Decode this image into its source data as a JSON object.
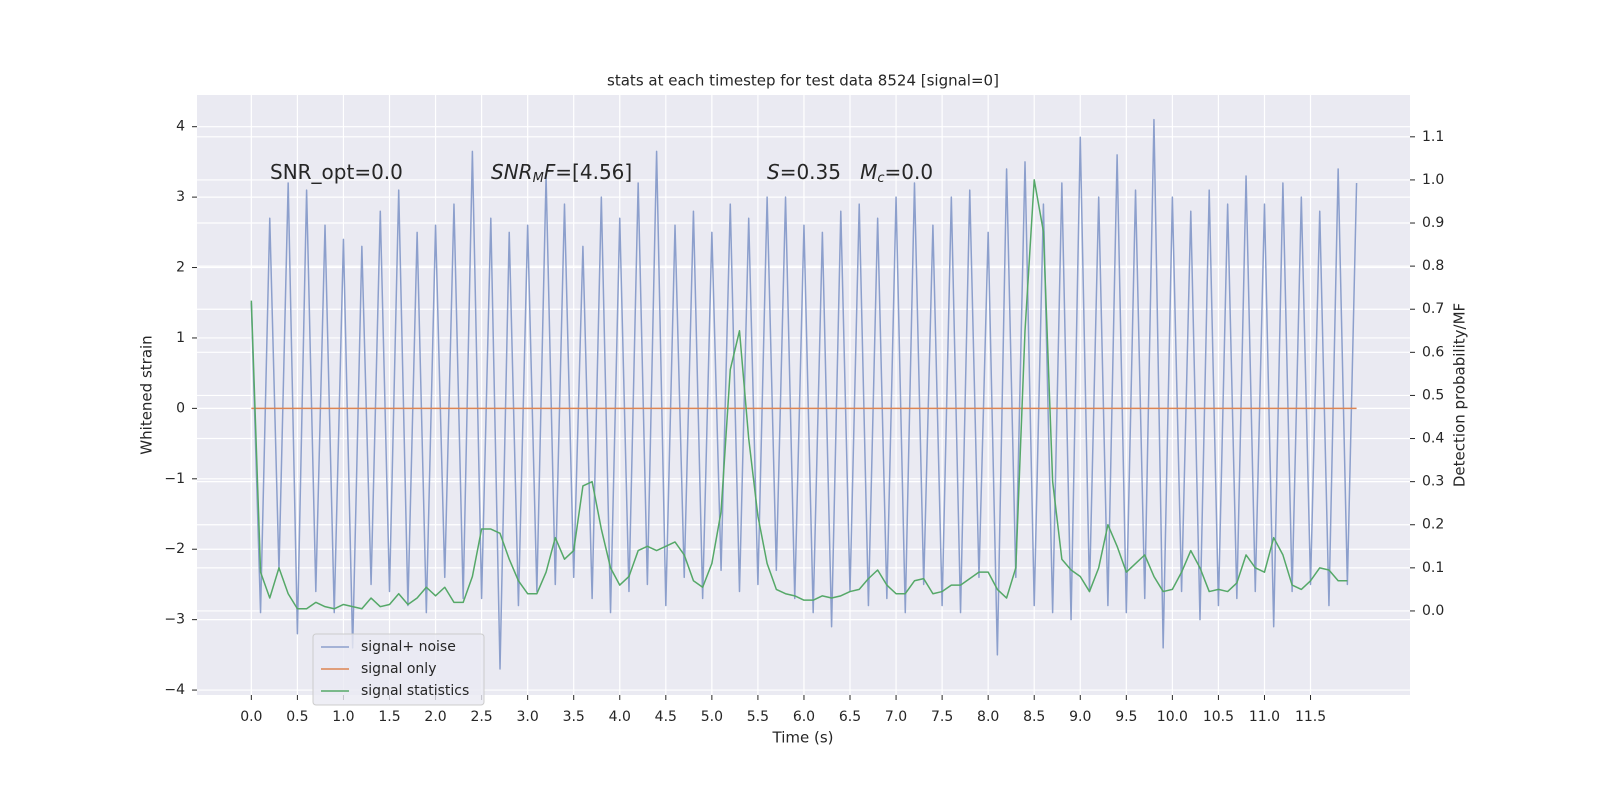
{
  "chart_data": {
    "type": "line",
    "title": "stats at each timestep for test data 8524 [signal=0]",
    "xlabel": "Time (s)",
    "ylabel": "Whitened strain",
    "y2label": "Detection probability/MF",
    "xlim": [
      -0.59,
      12.58
    ],
    "ylim": [
      -4.07,
      4.45
    ],
    "y2lim": [
      -0.195,
      1.197
    ],
    "grid": true,
    "legend": "lower left",
    "xticks": [
      {
        "value": 0,
        "label": "0.0"
      },
      {
        "value": 0.5,
        "label": "0.5"
      },
      {
        "value": 1,
        "label": "1.0"
      },
      {
        "value": 1.5,
        "label": "1.5"
      },
      {
        "value": 2,
        "label": "2.0"
      },
      {
        "value": 2.5,
        "label": "2.5"
      },
      {
        "value": 3,
        "label": "3.0"
      },
      {
        "value": 3.5,
        "label": "3.5"
      },
      {
        "value": 4,
        "label": "4.0"
      },
      {
        "value": 4.5,
        "label": "4.5"
      },
      {
        "value": 5,
        "label": "5.0"
      },
      {
        "value": 5.5,
        "label": "5.5"
      },
      {
        "value": 6,
        "label": "6.0"
      },
      {
        "value": 6.5,
        "label": "6.5"
      },
      {
        "value": 7,
        "label": "7.0"
      },
      {
        "value": 7.5,
        "label": "7.5"
      },
      {
        "value": 8,
        "label": "8.0"
      },
      {
        "value": 8.5,
        "label": "8.5"
      },
      {
        "value": 9,
        "label": "9.0"
      },
      {
        "value": 9.5,
        "label": "9.5"
      },
      {
        "value": 10,
        "label": "10.0"
      },
      {
        "value": 10.5,
        "label": "10.5"
      },
      {
        "value": 11,
        "label": "11.0"
      },
      {
        "value": 11.5,
        "label": "11.5"
      }
    ],
    "yticks": [
      {
        "value": -4,
        "label": "−4"
      },
      {
        "value": -3,
        "label": "−3"
      },
      {
        "value": -2,
        "label": "−2"
      },
      {
        "value": -1,
        "label": "−1"
      },
      0,
      1,
      2,
      3,
      4
    ],
    "y2ticks": [
      {
        "value": 0,
        "label": "0.0"
      },
      0.1,
      0.2,
      0.3,
      0.4,
      0.5,
      0.6,
      0.7,
      0.8,
      0.9,
      {
        "value": 1,
        "label": "1.0"
      },
      1.1
    ],
    "annotations": [
      [
        {
          "text": "SNR_opt=0.0",
          "style": "normal"
        }
      ],
      [
        {
          "text": "SNR",
          "style": "italic"
        },
        {
          "text": "M",
          "style": "sub"
        },
        {
          "text": "F",
          "style": "italic"
        },
        {
          "text": "=[4.56]",
          "style": "normal"
        }
      ],
      [
        {
          "text": "S",
          "style": "italic"
        },
        {
          "text": "=0.35   ",
          "style": "normal"
        },
        {
          "text": "M",
          "style": "italic"
        },
        {
          "text": "c",
          "style": "sub"
        },
        {
          "text": "=0.0",
          "style": "normal"
        }
      ]
    ],
    "series": [
      {
        "name": "signal+ noise",
        "color": "#8c9fcc",
        "x": [
          0,
          0.1,
          0.2,
          0.3,
          0.4,
          0.5,
          0.6,
          0.7,
          0.8,
          0.9,
          1,
          1.1,
          1.2,
          1.3,
          1.4,
          1.5,
          1.6,
          1.7,
          1.8,
          1.9,
          2,
          2.1,
          2.2,
          2.3,
          2.4,
          2.5,
          2.6,
          2.7,
          2.8,
          2.9,
          3,
          3.1,
          3.2,
          3.3,
          3.4,
          3.5,
          3.6,
          3.7,
          3.8,
          3.9,
          4,
          4.1,
          4.2,
          4.3,
          4.4,
          4.5,
          4.6,
          4.7,
          4.8,
          4.9,
          5,
          5.1,
          5.2,
          5.3,
          5.4,
          5.5,
          5.6,
          5.7,
          5.8,
          5.9,
          6,
          6.1,
          6.2,
          6.3,
          6.4,
          6.5,
          6.6,
          6.7,
          6.8,
          6.9,
          7,
          7.1,
          7.2,
          7.3,
          7.4,
          7.5,
          7.6,
          7.7,
          7.8,
          7.9,
          8,
          8.1,
          8.2,
          8.3,
          8.4,
          8.5,
          8.6,
          8.7,
          8.8,
          8.9,
          9,
          9.1,
          9.2,
          9.3,
          9.4,
          9.5,
          9.6,
          9.7,
          9.8,
          9.9,
          10,
          10.1,
          10.2,
          10.3,
          10.4,
          10.5,
          10.6,
          10.7,
          10.8,
          10.9,
          11,
          11.1,
          11.2,
          11.3,
          11.4,
          11.5,
          11.6,
          11.7,
          11.8,
          11.9,
          12
        ],
        "values": [
          1.5,
          -2.9,
          2.7,
          -2.3,
          3.2,
          -3.2,
          3.1,
          -2.6,
          2.6,
          -2.9,
          2.4,
          -3.4,
          2.3,
          -2.5,
          2.8,
          -2.6,
          3.1,
          -2.8,
          2.5,
          -2.9,
          2.6,
          -2.4,
          2.9,
          -2.7,
          3.65,
          -2.7,
          2.7,
          -3.7,
          2.5,
          -2.8,
          2.6,
          -2.6,
          3.3,
          -2.5,
          2.9,
          -2.4,
          2.3,
          -2.7,
          3.0,
          -2.9,
          2.7,
          -2.6,
          3.2,
          -2.5,
          3.65,
          -2.8,
          2.6,
          -2.4,
          2.8,
          -2.7,
          2.5,
          -2.3,
          2.9,
          -2.6,
          2.7,
          -2.5,
          3.0,
          -2.3,
          3.0,
          -2.7,
          2.6,
          -2.9,
          2.5,
          -3.1,
          2.8,
          -2.6,
          2.9,
          -2.8,
          2.7,
          -2.7,
          3.0,
          -2.9,
          3.2,
          -2.5,
          2.6,
          -2.8,
          3.0,
          -2.9,
          3.1,
          -2.4,
          2.5,
          -3.5,
          3.4,
          -2.4,
          3.5,
          -2.8,
          2.9,
          -2.9,
          3.2,
          -3.0,
          3.85,
          -2.6,
          3.0,
          -2.8,
          3.6,
          -2.9,
          3.1,
          -2.7,
          4.1,
          -3.4,
          3.0,
          -2.6,
          2.8,
          -3.0,
          3.1,
          -2.8,
          2.9,
          -2.7,
          3.3,
          -2.6,
          2.9,
          -3.1,
          3.2,
          -2.6,
          3.0,
          -2.5,
          2.8,
          -2.8,
          3.4,
          -2.5,
          3.2
        ]
      },
      {
        "name": "signal only",
        "color": "#dd8452",
        "x": [
          0,
          12
        ],
        "values": [
          0,
          0
        ]
      },
      {
        "name": "signal statistics",
        "color": "#55a868",
        "axis": "y2",
        "x": [
          0,
          0.1,
          0.2,
          0.3,
          0.4,
          0.5,
          0.6,
          0.7,
          0.8,
          0.9,
          1,
          1.1,
          1.2,
          1.3,
          1.4,
          1.5,
          1.6,
          1.7,
          1.8,
          1.9,
          2,
          2.1,
          2.2,
          2.3,
          2.4,
          2.5,
          2.6,
          2.7,
          2.8,
          2.9,
          3,
          3.1,
          3.2,
          3.3,
          3.4,
          3.5,
          3.6,
          3.7,
          3.8,
          3.9,
          4,
          4.1,
          4.2,
          4.3,
          4.4,
          4.5,
          4.6,
          4.7,
          4.8,
          4.9,
          5,
          5.1,
          5.2,
          5.3,
          5.4,
          5.5,
          5.6,
          5.7,
          5.8,
          5.9,
          6,
          6.1,
          6.2,
          6.3,
          6.4,
          6.5,
          6.6,
          6.7,
          6.8,
          6.9,
          7,
          7.1,
          7.2,
          7.3,
          7.4,
          7.5,
          7.6,
          7.7,
          7.8,
          7.9,
          8,
          8.1,
          8.2,
          8.3,
          8.4,
          8.5,
          8.6,
          8.7,
          8.8,
          8.9,
          9,
          9.1,
          9.2,
          9.3,
          9.4,
          9.5,
          9.6,
          9.7,
          9.8,
          9.9,
          10,
          10.1,
          10.2,
          10.3,
          10.4,
          10.5,
          10.6,
          10.7,
          10.8,
          10.9,
          11,
          11.1,
          11.2,
          11.3,
          11.4,
          11.5,
          11.6,
          11.7,
          11.8,
          11.9
        ],
        "values": [
          0.72,
          0.09,
          0.03,
          0.1,
          0.04,
          0.005,
          0.005,
          0.02,
          0.01,
          0.005,
          0.015,
          0.01,
          0.005,
          0.03,
          0.01,
          0.015,
          0.04,
          0.015,
          0.03,
          0.055,
          0.035,
          0.055,
          0.02,
          0.02,
          0.08,
          0.19,
          0.19,
          0.18,
          0.12,
          0.07,
          0.04,
          0.04,
          0.09,
          0.17,
          0.12,
          0.14,
          0.29,
          0.3,
          0.19,
          0.1,
          0.06,
          0.08,
          0.14,
          0.15,
          0.14,
          0.15,
          0.16,
          0.13,
          0.07,
          0.055,
          0.11,
          0.23,
          0.56,
          0.65,
          0.4,
          0.22,
          0.11,
          0.05,
          0.04,
          0.035,
          0.025,
          0.025,
          0.035,
          0.03,
          0.035,
          0.045,
          0.05,
          0.075,
          0.095,
          0.06,
          0.04,
          0.04,
          0.07,
          0.075,
          0.04,
          0.045,
          0.06,
          0.06,
          0.075,
          0.09,
          0.09,
          0.05,
          0.03,
          0.1,
          0.65,
          1.0,
          0.88,
          0.3,
          0.12,
          0.095,
          0.08,
          0.045,
          0.1,
          0.2,
          0.15,
          0.09,
          0.11,
          0.13,
          0.08,
          0.045,
          0.05,
          0.09,
          0.14,
          0.1,
          0.045,
          0.05,
          0.045,
          0.065,
          0.13,
          0.1,
          0.09,
          0.17,
          0.13,
          0.06,
          0.05,
          0.07,
          0.1,
          0.095,
          0.07,
          0.07
        ]
      }
    ]
  }
}
